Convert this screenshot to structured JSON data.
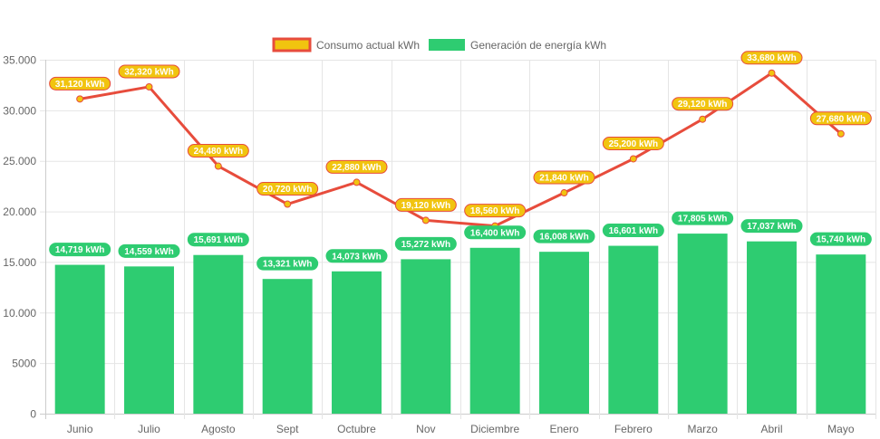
{
  "chart_data": {
    "type": "bar",
    "title": "",
    "xlabel": "",
    "ylabel": "",
    "categories": [
      "Junio",
      "Julio",
      "Agosto",
      "Sept",
      "Octubre",
      "Nov",
      "Diciembre",
      "Enero",
      "Febrero",
      "Marzo",
      "Abril",
      "Mayo"
    ],
    "ylim": [
      0,
      35000
    ],
    "y_ticks": [
      {
        "value": 0,
        "label": "0"
      },
      {
        "value": 5000,
        "label": "5000"
      },
      {
        "value": 10000,
        "label": "10.000"
      },
      {
        "value": 15000,
        "label": "15.000"
      },
      {
        "value": 20000,
        "label": "20.000"
      },
      {
        "value": 25000,
        "label": "25.000"
      },
      {
        "value": 30000,
        "label": "30.000"
      },
      {
        "value": 35000,
        "label": "35.000"
      }
    ],
    "grid": true,
    "legend_position": "top-center",
    "series": [
      {
        "name": "Consumo actual kWh",
        "type": "line",
        "color": "#e74c3c",
        "fill_color": "#f1c40f",
        "values": [
          31120,
          32320,
          24480,
          20720,
          22880,
          19120,
          18560,
          21840,
          25200,
          29120,
          33680,
          27680
        ],
        "data_labels": [
          "31,120 kWh",
          "32,320 kWh",
          "24,480 kWh",
          "20,720 kWh",
          "22,880 kWh",
          "19,120 kWh",
          "18,560 kWh",
          "21,840 kWh",
          "25,200 kWh",
          "29,120 kWh",
          "33,680 kWh",
          "27,680 kWh"
        ]
      },
      {
        "name": "Generación de energía kWh",
        "type": "bar",
        "color": "#2ecc71",
        "values": [
          14719,
          14559,
          15691,
          13321,
          14073,
          15272,
          16400,
          16008,
          16601,
          17805,
          17037,
          15740
        ],
        "data_labels": [
          "14,719 kWh",
          "14,559 kWh",
          "15,691 kWh",
          "13,321 kWh",
          "14,073 kWh",
          "15,272 kWh",
          "16,400 kWh",
          "16,008 kWh",
          "16,601 kWh",
          "17,805 kWh",
          "17,037 kWh",
          "15,740 kWh"
        ]
      }
    ]
  },
  "colors": {
    "grid": "#e5e5e5",
    "axis": "#cccccc",
    "text": "#666666"
  }
}
